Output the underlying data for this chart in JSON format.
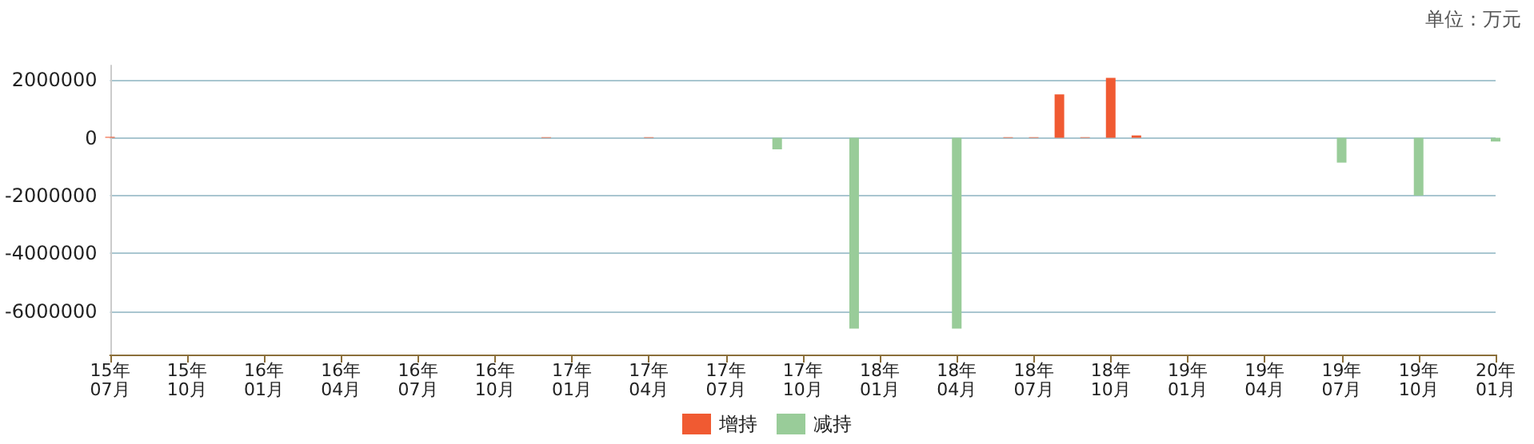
{
  "chart_data": {
    "type": "bar",
    "annotations": [
      "单位：万元"
    ],
    "categories": [
      "15年07月",
      null,
      null,
      "15年10月",
      null,
      null,
      "16年01月",
      null,
      null,
      "16年04月",
      null,
      null,
      "16年07月",
      null,
      null,
      "16年10月",
      null,
      null,
      "17年01月",
      null,
      null,
      "17年04月",
      null,
      null,
      "17年07月",
      null,
      null,
      "17年10月",
      null,
      null,
      "18年01月",
      null,
      null,
      "18年04月",
      null,
      null,
      "18年07月",
      null,
      null,
      "18年10月",
      null,
      null,
      "19年01月",
      null,
      null,
      "19年04月",
      null,
      null,
      "19年07月",
      null,
      null,
      "19年10月",
      null,
      null,
      "20年01月"
    ],
    "series": [
      {
        "name": "增持",
        "color": "#f05a32",
        "values": [
          30000,
          null,
          null,
          null,
          null,
          null,
          null,
          null,
          null,
          null,
          null,
          null,
          null,
          null,
          null,
          null,
          null,
          20000,
          null,
          null,
          null,
          20000,
          null,
          null,
          null,
          null,
          null,
          null,
          null,
          null,
          null,
          null,
          null,
          null,
          null,
          20000,
          20000,
          1500000,
          20000,
          2070000,
          80000,
          null,
          null,
          null,
          null,
          null,
          null,
          null,
          null,
          null,
          null,
          null,
          null,
          null,
          null
        ]
      },
      {
        "name": "减持",
        "color": "#99cc99",
        "values": [
          null,
          null,
          null,
          null,
          null,
          null,
          null,
          null,
          null,
          null,
          null,
          null,
          null,
          null,
          null,
          null,
          null,
          null,
          null,
          null,
          null,
          null,
          null,
          null,
          null,
          null,
          -400000,
          null,
          null,
          -6600000,
          null,
          null,
          null,
          -6600000,
          null,
          null,
          null,
          null,
          null,
          null,
          null,
          null,
          null,
          null,
          null,
          null,
          null,
          null,
          -860000,
          null,
          null,
          -2000000,
          null,
          null,
          -130000
        ]
      }
    ],
    "ylim": [
      -7500000,
      2500000
    ],
    "yticks": [
      -6000000,
      -4000000,
      -2000000,
      0,
      2000000
    ],
    "grid": "y",
    "legend": "bottom"
  }
}
